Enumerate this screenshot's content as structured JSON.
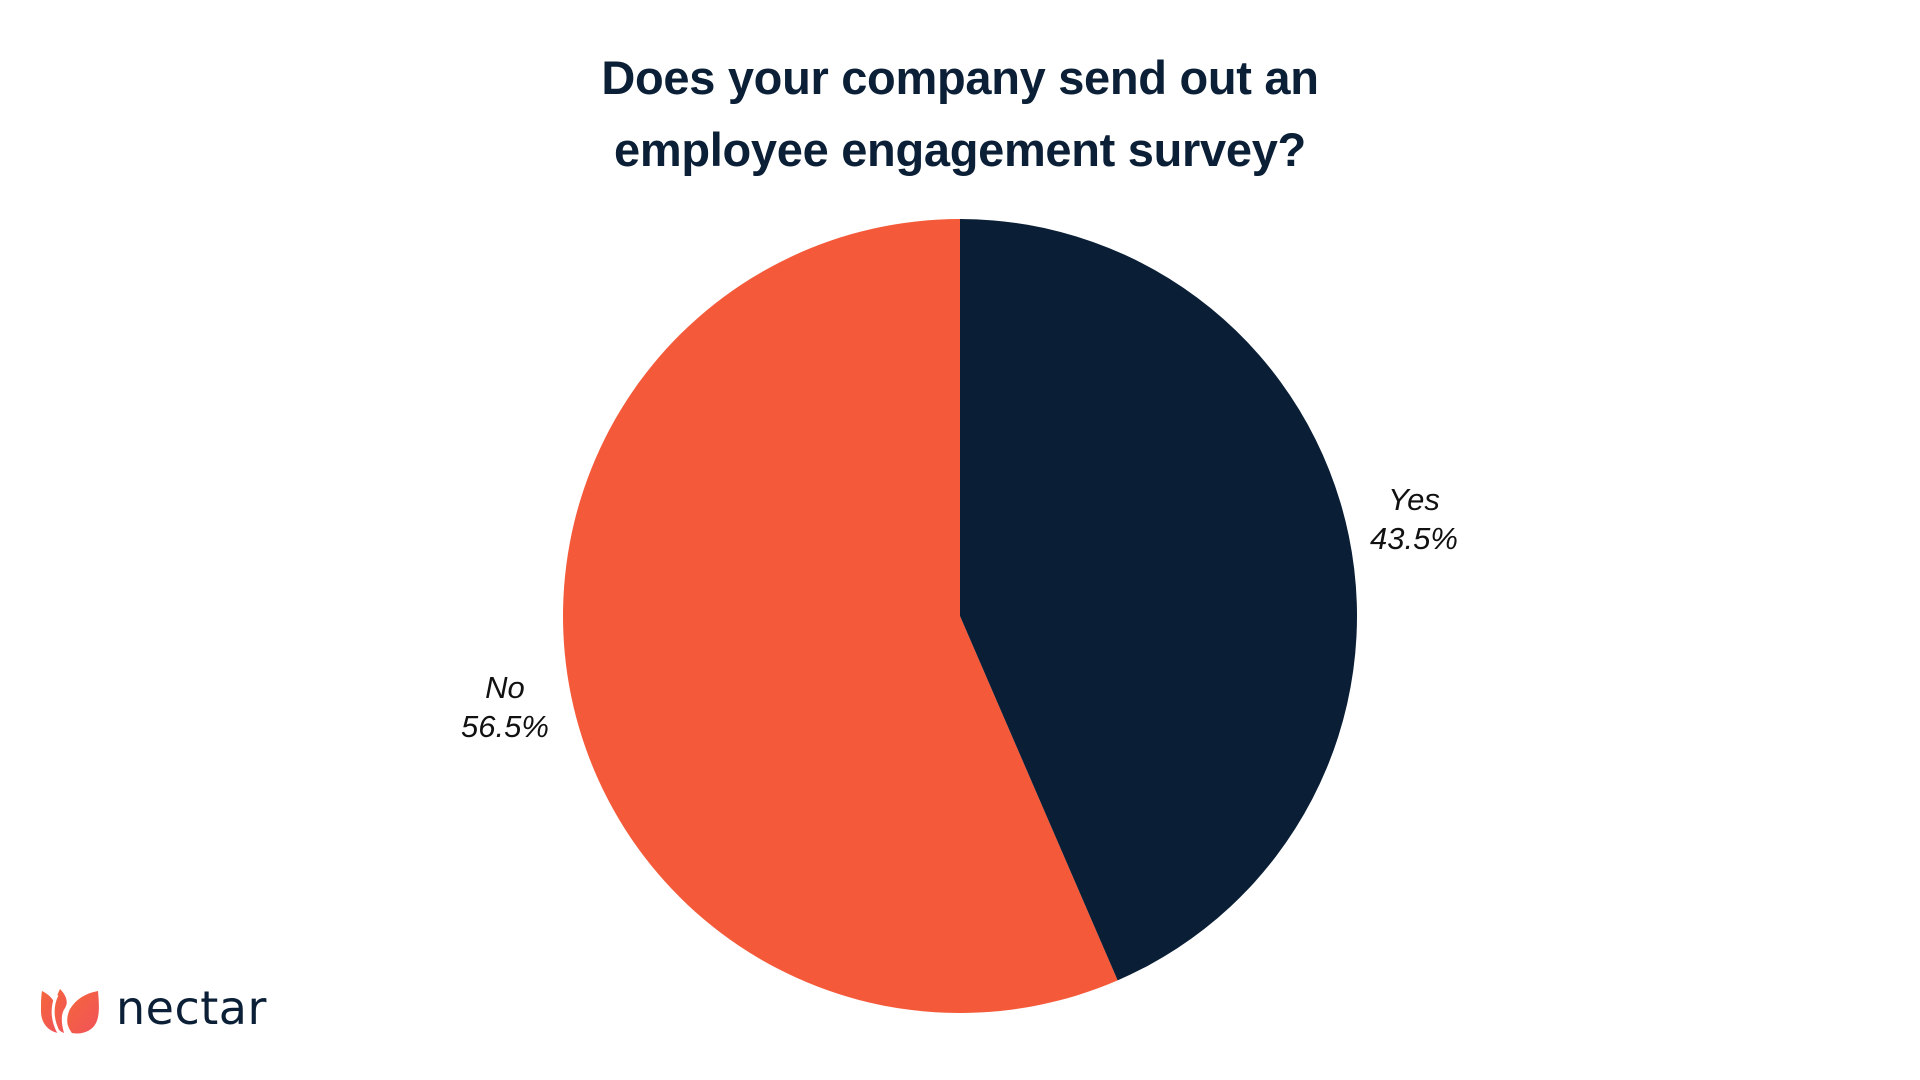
{
  "title": {
    "line1": "Does your company send out an",
    "line2": "employee engagement survey?"
  },
  "colors": {
    "yes": "#0a1f36",
    "no": "#f45a3a",
    "title": "#0b1f36",
    "label": "#111111",
    "background": "#ffffff"
  },
  "slices": {
    "yes": {
      "label": "Yes",
      "value_text": "43.5%"
    },
    "no": {
      "label": "No",
      "value_text": "56.5%"
    }
  },
  "logo": {
    "icon": "tulip-petals-icon",
    "text": "nectar"
  },
  "chart_data": {
    "type": "pie",
    "title": "Does your company send out an employee engagement survey?",
    "categories": [
      "Yes",
      "No"
    ],
    "values": [
      43.5,
      56.5
    ],
    "unit": "%",
    "colors": [
      "#0a1f36",
      "#f45a3a"
    ],
    "start_angle": "12 o'clock, clockwise",
    "legend": "none (inline labels)",
    "data_labels": [
      "Yes 43.5%",
      "No 56.5%"
    ]
  }
}
